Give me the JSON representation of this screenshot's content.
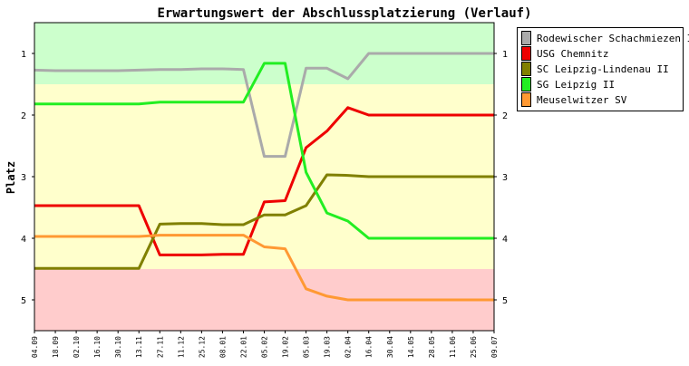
{
  "chart_data": {
    "type": "line",
    "title": "Erwartungswert der Abschlussplatzierung (Verlauf)",
    "ylabel": "Platz",
    "xlabel": "",
    "ylim": [
      5.5,
      0.5
    ],
    "y_ticks": [
      1,
      2,
      3,
      4,
      5
    ],
    "x": [
      "04.09",
      "18.09",
      "02.10",
      "16.10",
      "30.10",
      "13.11",
      "27.11",
      "11.12",
      "25.12",
      "08.01",
      "22.01",
      "05.02",
      "19.02",
      "05.03",
      "19.03",
      "02.04",
      "16.04",
      "30.04",
      "14.05",
      "28.05",
      "11.06",
      "25.06",
      "09.07"
    ],
    "bands": [
      {
        "from": 0.5,
        "to": 1.5,
        "color": "#ccffcc"
      },
      {
        "from": 1.5,
        "to": 4.5,
        "color": "#ffffcc"
      },
      {
        "from": 4.5,
        "to": 5.5,
        "color": "#ffcccc"
      }
    ],
    "series": [
      {
        "name": "Rodewischer Schachmiezen II",
        "color": "#aaaaaa",
        "values": [
          1.27,
          1.28,
          1.28,
          1.28,
          1.28,
          1.27,
          1.26,
          1.26,
          1.25,
          1.25,
          1.26,
          2.67,
          2.67,
          1.24,
          1.24,
          1.41,
          1.0,
          1.0,
          1.0,
          1.0,
          1.0,
          1.0,
          1.0
        ]
      },
      {
        "name": "USG Chemnitz",
        "color": "#ee0000",
        "values": [
          3.47,
          3.47,
          3.47,
          3.47,
          3.47,
          3.47,
          4.27,
          4.27,
          4.27,
          4.26,
          4.26,
          3.41,
          3.39,
          2.53,
          2.26,
          1.88,
          2.0,
          2.0,
          2.0,
          2.0,
          2.0,
          2.0,
          2.0
        ]
      },
      {
        "name": "SC Leipzig-Lindenau II",
        "color": "#808000",
        "values": [
          4.49,
          4.49,
          4.49,
          4.49,
          4.49,
          4.49,
          3.77,
          3.76,
          3.76,
          3.78,
          3.78,
          3.62,
          3.62,
          3.47,
          2.97,
          2.98,
          3.0,
          3.0,
          3.0,
          3.0,
          3.0,
          3.0,
          3.0
        ]
      },
      {
        "name": "SG Leipzig II",
        "color": "#22ee22",
        "values": [
          1.82,
          1.82,
          1.82,
          1.82,
          1.82,
          1.82,
          1.79,
          1.79,
          1.79,
          1.79,
          1.79,
          1.16,
          1.16,
          2.93,
          3.59,
          3.72,
          4.0,
          4.0,
          4.0,
          4.0,
          4.0,
          4.0,
          4.0
        ]
      },
      {
        "name": "Meuselwitzer SV",
        "color": "#ff9933",
        "values": [
          3.97,
          3.97,
          3.97,
          3.97,
          3.97,
          3.97,
          3.95,
          3.95,
          3.95,
          3.95,
          3.95,
          4.14,
          4.17,
          4.82,
          4.94,
          5.0,
          5.0,
          5.0,
          5.0,
          5.0,
          5.0,
          5.0,
          5.0
        ]
      }
    ],
    "legend": "top-right"
  }
}
